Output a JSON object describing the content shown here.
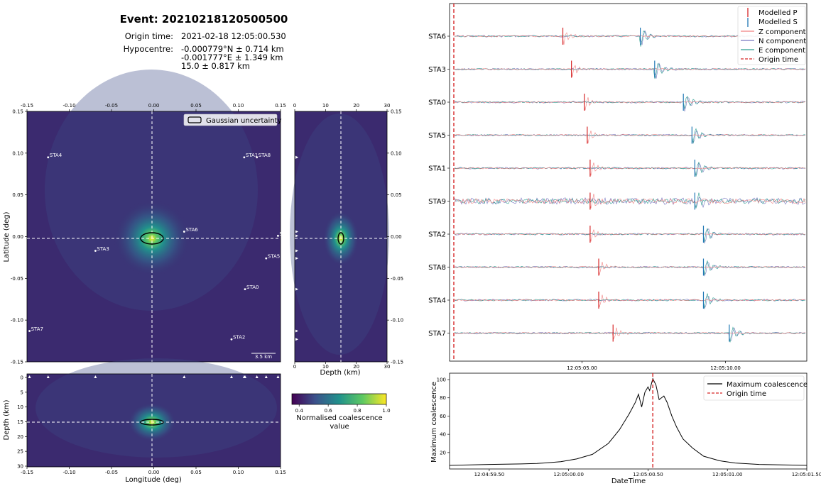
{
  "header": {
    "title": "Event: 20210218120500500",
    "origin_label": "Origin time:",
    "origin_value": "2021-02-18 12:05:00.530",
    "hypo_label": "Hypocentre:",
    "hypo_lines": [
      "-0.000779°N ± 0.714 km",
      "-0.001777°E ± 1.349 km",
      "15.0 ± 0.817 km"
    ]
  },
  "colors": {
    "viridis_dark": "#440154",
    "viridis_bg": "#3b2a6f",
    "p_pick": "#d62728",
    "s_pick": "#1f77b4",
    "z_comp": "#f08080",
    "n_comp": "#7878c0",
    "e_comp": "#2a9d8f",
    "origin": "#d62728",
    "coalescence": "#000000"
  },
  "chart_data": [
    {
      "type": "heatmap",
      "panel": "map-view",
      "xlabel": "Longitude (deg)",
      "ylabel": "Latitude (deg)",
      "xlim": [
        -0.15,
        0.15
      ],
      "ylim": [
        -0.15,
        0.15
      ],
      "x_ticks": [
        "-0.15",
        "-0.10",
        "-0.05",
        "0.00",
        "0.05",
        "0.10",
        "0.15"
      ],
      "y_ticks": [
        "0.15",
        "0.10",
        "0.05",
        "0.00",
        "-0.05",
        "-0.10",
        "-0.15"
      ],
      "legend": "Gaussian uncertainty",
      "scalebar": "3.5 km",
      "hypocentre": {
        "lon": -0.001777,
        "lat": -0.000779,
        "depth": 15.0
      },
      "stations": [
        {
          "name": "STA4",
          "lon": -0.125,
          "lat": 0.095
        },
        {
          "name": "STA1",
          "lon": 0.107,
          "lat": 0.095
        },
        {
          "name": "STA8",
          "lon": 0.122,
          "lat": 0.095
        },
        {
          "name": "STA6",
          "lon": 0.036,
          "lat": 0.006
        },
        {
          "name": "ST",
          "lon": 0.147,
          "lat": 0.001
        },
        {
          "name": "STA3",
          "lon": -0.069,
          "lat": -0.017
        },
        {
          "name": "STA5",
          "lon": 0.133,
          "lat": -0.026
        },
        {
          "name": "STA0",
          "lon": 0.108,
          "lat": -0.063
        },
        {
          "name": "STA7",
          "lon": -0.147,
          "lat": -0.113
        },
        {
          "name": "STA2",
          "lon": 0.092,
          "lat": -0.123
        }
      ]
    },
    {
      "type": "heatmap",
      "panel": "lat-depth",
      "xlabel": "Depth (km)",
      "xlim": [
        0,
        30
      ],
      "ylim": [
        -0.15,
        0.15
      ],
      "x_ticks": [
        "0",
        "10",
        "20",
        "30"
      ],
      "y_ticks": [
        "0.15",
        "0.10",
        "0.05",
        "0.00",
        "-0.05",
        "-0.10",
        "-0.15"
      ]
    },
    {
      "type": "heatmap",
      "panel": "depth-lon",
      "xlabel": "Longitude (deg)",
      "ylabel": "Depth (km)",
      "xlim": [
        -0.15,
        0.15
      ],
      "ylim": [
        30,
        0
      ],
      "x_ticks": [
        "-0.15",
        "-0.10",
        "-0.05",
        "0.00",
        "0.05",
        "0.10",
        "0.15"
      ],
      "y_ticks": [
        "0",
        "5",
        "10",
        "15",
        "20",
        "25",
        "30"
      ]
    },
    {
      "type": "colorbar",
      "label_line1": "Normalised coalescence",
      "label_line2": "value",
      "ticks": [
        "0.4",
        "0.6",
        "0.8",
        "1.0"
      ],
      "range": [
        0.35,
        1.0
      ]
    },
    {
      "type": "line",
      "panel": "waveforms",
      "x_ticks": [
        "12:05:05.00",
        "12:05:10.00"
      ],
      "stations": [
        "STA6",
        "STA3",
        "STA0",
        "STA5",
        "STA1",
        "STA9",
        "STA2",
        "STA8",
        "STA4",
        "STA7"
      ],
      "p_picks_s": [
        3.8,
        4.1,
        4.55,
        4.65,
        4.75,
        4.75,
        4.75,
        5.05,
        5.05,
        5.55
      ],
      "s_picks_s": [
        6.5,
        7.0,
        8.0,
        8.3,
        8.4,
        8.4,
        8.7,
        8.7,
        8.7,
        9.6
      ],
      "legend": [
        "Modelled P",
        "Modelled S",
        "Z component",
        "N component",
        "E component",
        "Origin time"
      ],
      "legend_placement": "top-right"
    },
    {
      "type": "line",
      "panel": "coalescence",
      "xlabel": "DateTime",
      "ylabel": "Maximum coalescence",
      "x_ticks": [
        "12:04:59.50",
        "12:05:00.00",
        "12:05:00.50",
        "12:05:01.00",
        "12:05:01.50",
        "12:05:02.00"
      ],
      "y_ticks": [
        "20",
        "40",
        "60",
        "80",
        "100"
      ],
      "xlim": [
        -0.75,
        1.5
      ],
      "ylim": [
        2,
        107
      ],
      "x_unit": "seconds after 12:05:00.00",
      "peak": {
        "t": 0.53,
        "value": 101
      },
      "legend": [
        "Maximum coalescence",
        "Origin time"
      ],
      "legend_placement": "top-right",
      "series": [
        {
          "name": "Maximum coalescence",
          "t": [
            -0.75,
            -0.5,
            -0.3,
            -0.2,
            -0.12,
            -0.05,
            0.05,
            0.15,
            0.25,
            0.32,
            0.38,
            0.42,
            0.44,
            0.46,
            0.48,
            0.5,
            0.51,
            0.53,
            0.55,
            0.57,
            0.6,
            0.62,
            0.65,
            0.68,
            0.72,
            0.78,
            0.85,
            0.95,
            1.05,
            1.2,
            1.35,
            1.5
          ],
          "values": [
            6,
            7,
            7.5,
            8,
            9,
            10,
            13,
            18,
            30,
            45,
            62,
            75,
            84,
            70,
            86,
            92,
            88,
            101,
            94,
            78,
            82,
            75,
            60,
            48,
            35,
            25,
            16,
            11,
            8.5,
            7,
            6.5,
            6
          ]
        }
      ]
    }
  ]
}
